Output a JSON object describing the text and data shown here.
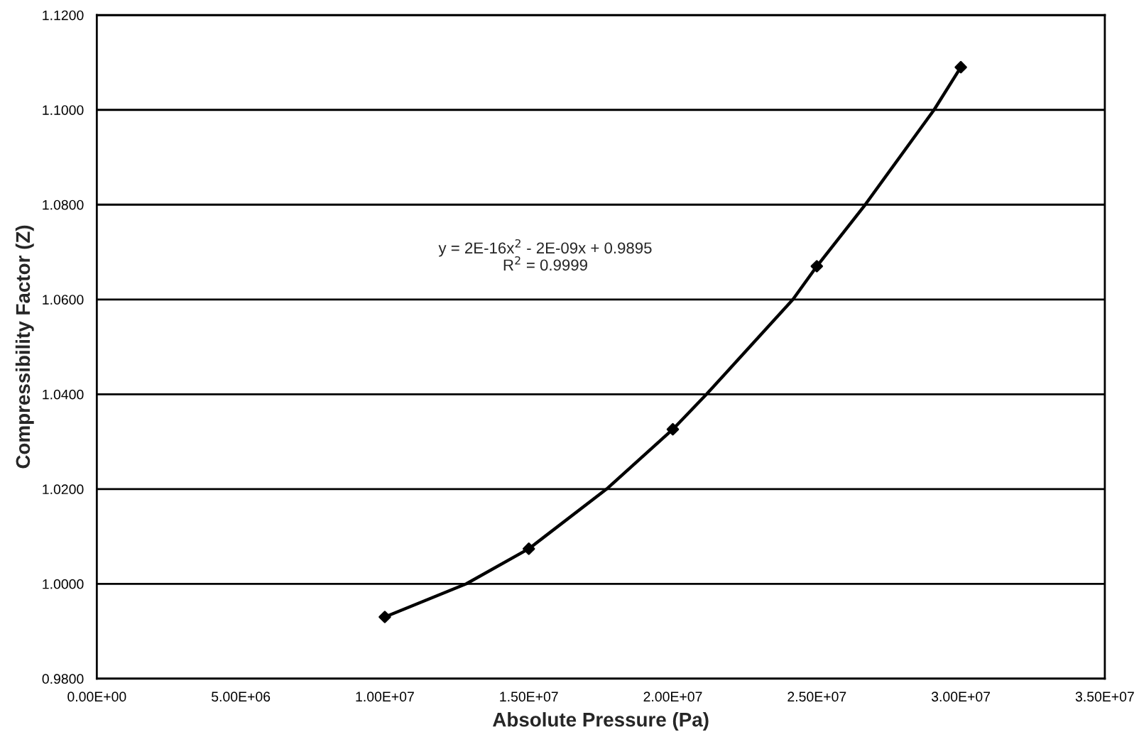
{
  "chart_data": {
    "type": "scatter",
    "xlabel": "Absolute Pressure (Pa)",
    "ylabel": "Compressibility Factor (Z)",
    "series": [
      {
        "color": "#000000",
        "marker": "diamond",
        "x": [
          10000000,
          15000000,
          20000000,
          25000000,
          30000000
        ],
        "values": [
          0.993,
          1.0074,
          1.0326,
          1.067,
          1.109
        ]
      },
      {
        "type": "line",
        "color": "#000000",
        "marker": "none",
        "line_style": "solid",
        "x": [
          10000000,
          12830000,
          15000000,
          17700000,
          20000000,
          21170000,
          24170000,
          25000000,
          26680000,
          29070000,
          30000000
        ],
        "values": [
          0.993,
          1.0,
          1.0074,
          1.02,
          1.0326,
          1.04,
          1.06,
          1.067,
          1.08,
          1.1,
          1.109
        ]
      }
    ],
    "annotations": [
      "y = 2E-16x$^{2}$ - 2E-09x + 0.9895\nR$^{2}$ = 0.9999"
    ],
    "xlim": [
      0,
      35000000
    ],
    "ylim": [
      0.98,
      1.12
    ],
    "xticks": [
      {
        "value": 0,
        "label": "0.00E+00"
      },
      {
        "value": 5000000,
        "label": "5.00E+06"
      },
      {
        "value": 10000000,
        "label": "1.00E+07"
      },
      {
        "value": 15000000,
        "label": "1.50E+07"
      },
      {
        "value": 20000000,
        "label": "2.00E+07"
      },
      {
        "value": 25000000,
        "label": "2.50E+07"
      },
      {
        "value": 30000000,
        "label": "3.00E+07"
      },
      {
        "value": 35000000,
        "label": "3.50E+07"
      }
    ],
    "yticks": [
      {
        "value": 0.98,
        "label": "0.9800"
      },
      {
        "value": 1.0,
        "label": "1.0000"
      },
      {
        "value": 1.02,
        "label": "1.0200"
      },
      {
        "value": 1.04,
        "label": "1.0400"
      },
      {
        "value": 1.06,
        "label": "1.0600"
      },
      {
        "value": 1.08,
        "label": "1.0800"
      },
      {
        "value": 1.1,
        "label": "1.1000"
      },
      {
        "value": 1.12,
        "label": "1.1200"
      }
    ],
    "grid": "y",
    "legend": false
  }
}
